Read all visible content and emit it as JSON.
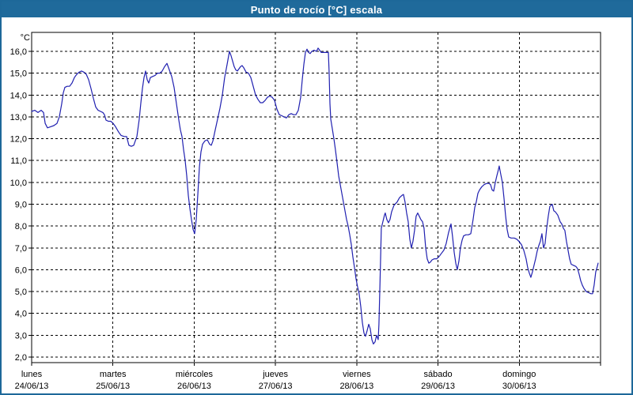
{
  "window": {
    "title": "Punto de rocío [°C] escala"
  },
  "colors": {
    "titlebar_bg": "#1f6a9b",
    "window_border": "#1d6899",
    "title_text": "#ffffff",
    "line": "#2020b0",
    "grid": "#000000",
    "axis": "#000000",
    "label_text": "#000000",
    "plot_bg": "#ffffff"
  },
  "chart_data": {
    "type": "line",
    "title": "Punto de rocío [°C] escala",
    "grid": "dashed",
    "legend": "none",
    "y_axis": {
      "unit_label": "°C",
      "min": 2,
      "max": 16,
      "tick_step": 1,
      "tick_values": [
        2,
        3,
        4,
        5,
        6,
        7,
        8,
        9,
        10,
        11,
        12,
        13,
        14,
        15,
        16
      ],
      "tick_labels": [
        "2,0",
        "3,0",
        "4,0",
        "5,0",
        "6,0",
        "7,0",
        "8,0",
        "9,0",
        "10,0",
        "11,0",
        "12,0",
        "13,0",
        "14,0",
        "15,0",
        "16,0"
      ]
    },
    "x_axis": {
      "unit": "days since lunes 24/06/13 00:00",
      "range_days": 7,
      "days": [
        {
          "name": "lunes",
          "date": "24/06/13"
        },
        {
          "name": "martes",
          "date": "25/06/13"
        },
        {
          "name": "miércoles",
          "date": "26/06/13"
        },
        {
          "name": "jueves",
          "date": "27/06/13"
        },
        {
          "name": "viernes",
          "date": "28/06/13"
        },
        {
          "name": "sábado",
          "date": "29/06/13"
        },
        {
          "name": "domingo",
          "date": "30/06/13"
        }
      ]
    },
    "series": [
      {
        "name": "Punto de rocío",
        "units": "°C",
        "points": [
          [
            0,
            13.25
          ],
          [
            0.039,
            13.3
          ],
          [
            0.078,
            13.2
          ],
          [
            0.117,
            13.3
          ],
          [
            0.146,
            13.2
          ],
          [
            0.166,
            12.7
          ],
          [
            0.195,
            12.5
          ],
          [
            0.234,
            12.55
          ],
          [
            0.273,
            12.6
          ],
          [
            0.312,
            12.7
          ],
          [
            0.341,
            13.0
          ],
          [
            0.37,
            13.6
          ],
          [
            0.389,
            14.1
          ],
          [
            0.409,
            14.35
          ],
          [
            0.438,
            14.4
          ],
          [
            0.467,
            14.4
          ],
          [
            0.497,
            14.55
          ],
          [
            0.526,
            14.8
          ],
          [
            0.555,
            14.95
          ],
          [
            0.584,
            15.05
          ],
          [
            0.613,
            15.1
          ],
          [
            0.643,
            15.05
          ],
          [
            0.672,
            14.95
          ],
          [
            0.701,
            14.7
          ],
          [
            0.73,
            14.3
          ],
          [
            0.759,
            13.85
          ],
          [
            0.789,
            13.45
          ],
          [
            0.818,
            13.3
          ],
          [
            0.847,
            13.25
          ],
          [
            0.876,
            13.2
          ],
          [
            0.896,
            13.1
          ],
          [
            0.915,
            12.85
          ],
          [
            0.944,
            12.8
          ],
          [
            0.974,
            12.8
          ],
          [
            1.003,
            12.7
          ],
          [
            1.032,
            12.55
          ],
          [
            1.071,
            12.3
          ],
          [
            1.1,
            12.15
          ],
          [
            1.139,
            12.1
          ],
          [
            1.168,
            12.1
          ],
          [
            1.197,
            11.7
          ],
          [
            1.227,
            11.65
          ],
          [
            1.256,
            11.7
          ],
          [
            1.275,
            11.9
          ],
          [
            1.295,
            12.1
          ],
          [
            1.324,
            12.9
          ],
          [
            1.343,
            13.6
          ],
          [
            1.363,
            14.3
          ],
          [
            1.382,
            14.8
          ],
          [
            1.402,
            15.1
          ],
          [
            1.421,
            14.7
          ],
          [
            1.441,
            14.55
          ],
          [
            1.46,
            14.8
          ],
          [
            1.489,
            14.85
          ],
          [
            1.519,
            14.9
          ],
          [
            1.548,
            15.0
          ],
          [
            1.577,
            15.0
          ],
          [
            1.606,
            15.1
          ],
          [
            1.636,
            15.3
          ],
          [
            1.665,
            15.45
          ],
          [
            1.694,
            15.15
          ],
          [
            1.723,
            14.85
          ],
          [
            1.752,
            14.35
          ],
          [
            1.782,
            13.6
          ],
          [
            1.811,
            12.85
          ],
          [
            1.83,
            12.4
          ],
          [
            1.85,
            12.1
          ],
          [
            1.869,
            11.5
          ],
          [
            1.889,
            11.0
          ],
          [
            1.908,
            10.3
          ],
          [
            1.928,
            9.4
          ],
          [
            1.947,
            8.8
          ],
          [
            1.967,
            8.3
          ],
          [
            1.986,
            7.85
          ],
          [
            2.006,
            7.65
          ],
          [
            2.025,
            8.3
          ],
          [
            2.045,
            9.5
          ],
          [
            2.064,
            10.7
          ],
          [
            2.083,
            11.4
          ],
          [
            2.103,
            11.75
          ],
          [
            2.132,
            11.9
          ],
          [
            2.161,
            11.95
          ],
          [
            2.19,
            11.75
          ],
          [
            2.21,
            11.7
          ],
          [
            2.23,
            11.9
          ],
          [
            2.259,
            12.4
          ],
          [
            2.288,
            12.9
          ],
          [
            2.317,
            13.4
          ],
          [
            2.346,
            14.0
          ],
          [
            2.375,
            14.8
          ],
          [
            2.405,
            15.4
          ],
          [
            2.424,
            15.8
          ],
          [
            2.434,
            16.0
          ],
          [
            2.453,
            15.8
          ],
          [
            2.473,
            15.55
          ],
          [
            2.492,
            15.3
          ],
          [
            2.512,
            15.15
          ],
          [
            2.531,
            15.1
          ],
          [
            2.551,
            15.2
          ],
          [
            2.57,
            15.3
          ],
          [
            2.59,
            15.35
          ],
          [
            2.609,
            15.25
          ],
          [
            2.638,
            15.05
          ],
          [
            2.668,
            15.0
          ],
          [
            2.697,
            14.8
          ],
          [
            2.726,
            14.4
          ],
          [
            2.755,
            14.0
          ],
          [
            2.784,
            13.8
          ],
          [
            2.814,
            13.65
          ],
          [
            2.843,
            13.65
          ],
          [
            2.872,
            13.75
          ],
          [
            2.901,
            13.9
          ],
          [
            2.931,
            13.95
          ],
          [
            2.96,
            13.9
          ],
          [
            2.989,
            13.75
          ],
          [
            3.018,
            13.35
          ],
          [
            3.047,
            13.1
          ],
          [
            3.077,
            13.05
          ],
          [
            3.106,
            13.0
          ],
          [
            3.135,
            12.95
          ],
          [
            3.164,
            13.1
          ],
          [
            3.193,
            13.15
          ],
          [
            3.223,
            13.1
          ],
          [
            3.252,
            13.1
          ],
          [
            3.281,
            13.3
          ],
          [
            3.31,
            13.9
          ],
          [
            3.33,
            14.7
          ],
          [
            3.349,
            15.4
          ],
          [
            3.369,
            15.95
          ],
          [
            3.388,
            16.1
          ],
          [
            3.407,
            15.95
          ],
          [
            3.427,
            15.9
          ],
          [
            3.446,
            16.0
          ],
          [
            3.476,
            16.05
          ],
          [
            3.505,
            16.0
          ],
          [
            3.524,
            16.15
          ],
          [
            3.544,
            16.05
          ],
          [
            3.563,
            15.95
          ],
          [
            3.592,
            15.95
          ],
          [
            3.622,
            15.95
          ],
          [
            3.651,
            15.95
          ],
          [
            3.661,
            15.0
          ],
          [
            3.67,
            13.6
          ],
          [
            3.68,
            12.9
          ],
          [
            3.7,
            12.45
          ],
          [
            3.719,
            12.0
          ],
          [
            3.738,
            11.5
          ],
          [
            3.758,
            10.9
          ],
          [
            3.777,
            10.3
          ],
          [
            3.797,
            9.9
          ],
          [
            3.816,
            9.5
          ],
          [
            3.836,
            9.1
          ],
          [
            3.855,
            8.7
          ],
          [
            3.875,
            8.3
          ],
          [
            3.894,
            8.0
          ],
          [
            3.914,
            7.6
          ],
          [
            3.933,
            7.15
          ],
          [
            3.952,
            6.6
          ],
          [
            3.972,
            6.1
          ],
          [
            3.991,
            5.6
          ],
          [
            4.011,
            5.2
          ],
          [
            4.03,
            4.9
          ],
          [
            4.05,
            4.3
          ],
          [
            4.069,
            3.6
          ],
          [
            4.089,
            3.1
          ],
          [
            4.108,
            2.95
          ],
          [
            4.127,
            3.2
          ],
          [
            4.147,
            3.5
          ],
          [
            4.166,
            3.3
          ],
          [
            4.186,
            2.8
          ],
          [
            4.205,
            2.6
          ],
          [
            4.225,
            2.7
          ],
          [
            4.244,
            3.0
          ],
          [
            4.264,
            2.8
          ],
          [
            4.273,
            3.5
          ],
          [
            4.283,
            4.9
          ],
          [
            4.293,
            6.5
          ],
          [
            4.302,
            7.9
          ],
          [
            4.322,
            8.2
          ],
          [
            4.341,
            8.5
          ],
          [
            4.351,
            8.6
          ],
          [
            4.37,
            8.3
          ],
          [
            4.39,
            8.15
          ],
          [
            4.409,
            8.3
          ],
          [
            4.429,
            8.65
          ],
          [
            4.458,
            8.95
          ],
          [
            4.497,
            9.1
          ],
          [
            4.526,
            9.3
          ],
          [
            4.555,
            9.4
          ],
          [
            4.575,
            9.45
          ],
          [
            4.594,
            9.1
          ],
          [
            4.614,
            8.6
          ],
          [
            4.633,
            8.2
          ],
          [
            4.653,
            7.4
          ],
          [
            4.672,
            7.0
          ],
          [
            4.692,
            7.3
          ],
          [
            4.711,
            7.8
          ],
          [
            4.731,
            8.45
          ],
          [
            4.75,
            8.6
          ],
          [
            4.77,
            8.45
          ],
          [
            4.789,
            8.3
          ],
          [
            4.809,
            8.2
          ],
          [
            4.828,
            7.9
          ],
          [
            4.848,
            7.0
          ],
          [
            4.867,
            6.5
          ],
          [
            4.887,
            6.3
          ],
          [
            4.906,
            6.35
          ],
          [
            4.926,
            6.45
          ],
          [
            4.955,
            6.5
          ],
          [
            4.984,
            6.5
          ],
          [
            5.013,
            6.6
          ],
          [
            5.042,
            6.75
          ],
          [
            5.072,
            6.9
          ],
          [
            5.101,
            7.2
          ],
          [
            5.13,
            7.7
          ],
          [
            5.16,
            8.1
          ],
          [
            5.179,
            7.5
          ],
          [
            5.199,
            6.8
          ],
          [
            5.218,
            6.3
          ],
          [
            5.237,
            6.0
          ],
          [
            5.257,
            6.4
          ],
          [
            5.276,
            7.0
          ],
          [
            5.296,
            7.35
          ],
          [
            5.315,
            7.55
          ],
          [
            5.344,
            7.6
          ],
          [
            5.374,
            7.6
          ],
          [
            5.403,
            7.65
          ],
          [
            5.432,
            8.3
          ],
          [
            5.452,
            8.85
          ],
          [
            5.471,
            9.1
          ],
          [
            5.491,
            9.5
          ],
          [
            5.51,
            9.65
          ],
          [
            5.539,
            9.8
          ],
          [
            5.569,
            9.9
          ],
          [
            5.598,
            9.95
          ],
          [
            5.627,
            9.95
          ],
          [
            5.646,
            9.9
          ],
          [
            5.666,
            9.65
          ],
          [
            5.685,
            9.6
          ],
          [
            5.705,
            10.0
          ],
          [
            5.724,
            10.3
          ],
          [
            5.744,
            10.6
          ],
          [
            5.753,
            10.75
          ],
          [
            5.773,
            10.35
          ],
          [
            5.792,
            10.0
          ],
          [
            5.811,
            9.3
          ],
          [
            5.831,
            8.5
          ],
          [
            5.85,
            7.85
          ],
          [
            5.87,
            7.5
          ],
          [
            5.899,
            7.45
          ],
          [
            5.938,
            7.45
          ],
          [
            5.967,
            7.4
          ],
          [
            5.996,
            7.3
          ],
          [
            6.026,
            7.15
          ],
          [
            6.055,
            6.9
          ],
          [
            6.084,
            6.5
          ],
          [
            6.103,
            6.1
          ],
          [
            6.123,
            5.85
          ],
          [
            6.142,
            5.65
          ],
          [
            6.162,
            5.9
          ],
          [
            6.181,
            6.2
          ],
          [
            6.201,
            6.5
          ],
          [
            6.22,
            6.85
          ],
          [
            6.24,
            7.1
          ],
          [
            6.259,
            7.3
          ],
          [
            6.279,
            7.65
          ],
          [
            6.298,
            7.0
          ],
          [
            6.318,
            7.2
          ],
          [
            6.337,
            7.9
          ],
          [
            6.356,
            8.45
          ],
          [
            6.376,
            8.9
          ],
          [
            6.405,
            9.0
          ],
          [
            6.425,
            8.7
          ],
          [
            6.444,
            8.65
          ],
          [
            6.473,
            8.5
          ],
          [
            6.503,
            8.2
          ],
          [
            6.522,
            8.1
          ],
          [
            6.542,
            7.9
          ],
          [
            6.561,
            7.8
          ],
          [
            6.58,
            7.3
          ],
          [
            6.6,
            6.9
          ],
          [
            6.619,
            6.5
          ],
          [
            6.639,
            6.25
          ],
          [
            6.668,
            6.2
          ],
          [
            6.697,
            6.15
          ],
          [
            6.717,
            6.05
          ],
          [
            6.736,
            5.8
          ],
          [
            6.756,
            5.5
          ],
          [
            6.775,
            5.3
          ],
          [
            6.795,
            5.15
          ],
          [
            6.824,
            5.0
          ],
          [
            6.853,
            4.95
          ],
          [
            6.882,
            4.9
          ],
          [
            6.902,
            4.9
          ],
          [
            6.921,
            5.3
          ],
          [
            6.941,
            5.9
          ],
          [
            6.96,
            6.15
          ],
          [
            6.97,
            6.3
          ]
        ]
      }
    ]
  }
}
